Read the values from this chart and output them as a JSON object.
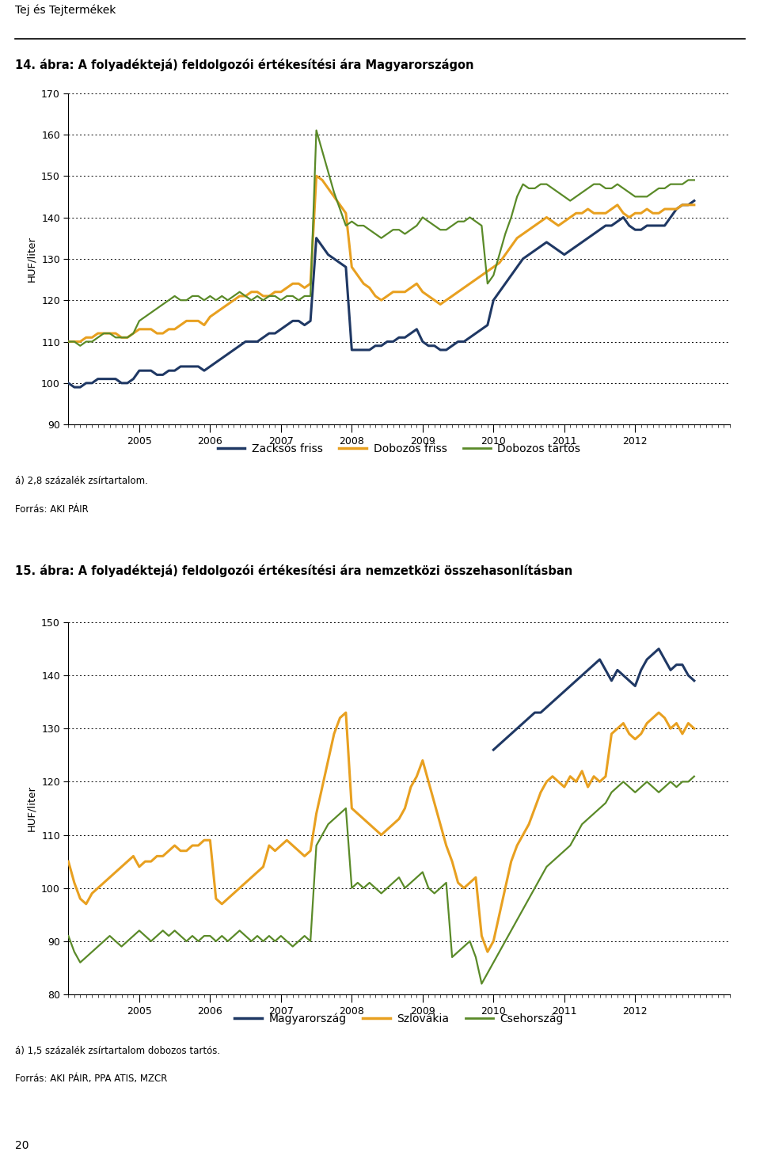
{
  "title1": "14. ábra: A folyadéktejá) feldolgozói értékesítési ára Magyarországon",
  "title2": "15. ábra: A folyadéktejá) feldolgozói értékesítési ára nemzetközi összehasonlításban",
  "header": "Tej és Tejtermékek",
  "ylabel": "HUF/liter",
  "footnote1a": "á) 2,8 százalék zsírtartalom.",
  "footnote1b": "Forrás: AKI PÁIR",
  "footnote2a": "á) 1,5 százalék zsírtartalom dobozos tartós.",
  "footnote2b": "Forrás: AKI PÁIR, PPA ATIS, MZCR",
  "page_number": "20",
  "color_blue": "#1F3864",
  "color_orange": "#E8A020",
  "color_green": "#5A8A28",
  "legend1": [
    "Zacksós friss",
    "Dobozos friss",
    "Dobozos tartós"
  ],
  "legend2": [
    "Magyarország",
    "Szlovákia",
    "Csehország"
  ],
  "chart1_ylim": [
    90,
    170
  ],
  "chart1_yticks": [
    90,
    100,
    110,
    120,
    130,
    140,
    150,
    160,
    170
  ],
  "chart2_ylim": [
    80,
    150
  ],
  "chart2_yticks": [
    80,
    90,
    100,
    110,
    120,
    130,
    140,
    150
  ],
  "year_ticks": [
    2005,
    2006,
    2007,
    2008,
    2009,
    2010,
    2011,
    2012
  ],
  "xlim": [
    2004.0,
    2012.92
  ],
  "n_months": 107,
  "start_year": 2004,
  "start_month": 1,
  "chart1_zacskos": [
    100,
    99,
    99,
    100,
    100,
    101,
    101,
    101,
    101,
    100,
    100,
    101,
    103,
    103,
    103,
    102,
    102,
    103,
    103,
    104,
    104,
    104,
    104,
    103,
    104,
    105,
    106,
    107,
    108,
    109,
    110,
    110,
    110,
    111,
    112,
    112,
    113,
    114,
    115,
    115,
    114,
    115,
    135,
    133,
    131,
    130,
    129,
    128,
    108,
    108,
    108,
    108,
    109,
    109,
    110,
    110,
    111,
    111,
    112,
    113,
    110,
    109,
    109,
    108,
    108,
    109,
    110,
    110,
    111,
    112,
    113,
    114,
    120,
    122,
    124,
    126,
    128,
    130,
    131,
    132,
    133,
    134,
    133,
    132,
    131,
    132,
    133,
    134,
    135,
    136,
    137,
    138,
    138,
    139,
    140,
    138,
    137,
    137,
    138,
    138,
    138,
    138,
    140,
    142,
    143,
    143,
    144,
    145,
    144
  ],
  "chart1_dobozos_friss": [
    110,
    110,
    110,
    111,
    111,
    112,
    112,
    112,
    112,
    111,
    111,
    112,
    113,
    113,
    113,
    112,
    112,
    113,
    113,
    114,
    115,
    115,
    115,
    114,
    116,
    117,
    118,
    119,
    120,
    121,
    121,
    122,
    122,
    121,
    121,
    122,
    122,
    123,
    124,
    124,
    123,
    124,
    150,
    149,
    147,
    145,
    143,
    141,
    128,
    126,
    124,
    123,
    121,
    120,
    121,
    122,
    122,
    122,
    123,
    124,
    122,
    121,
    120,
    119,
    120,
    121,
    122,
    123,
    124,
    125,
    126,
    127,
    128,
    129,
    131,
    133,
    135,
    136,
    137,
    138,
    139,
    140,
    139,
    138,
    139,
    140,
    141,
    141,
    142,
    141,
    141,
    141,
    142,
    143,
    141,
    140,
    141,
    141,
    142,
    141,
    141,
    142,
    142,
    142,
    143,
    143,
    143,
    143,
    143
  ],
  "chart1_dobozos_tartos": [
    110,
    110,
    109,
    110,
    110,
    111,
    112,
    112,
    111,
    111,
    111,
    112,
    115,
    116,
    117,
    118,
    119,
    120,
    121,
    120,
    120,
    121,
    121,
    120,
    121,
    120,
    121,
    120,
    121,
    122,
    121,
    120,
    121,
    120,
    121,
    121,
    120,
    121,
    121,
    120,
    121,
    121,
    161,
    156,
    151,
    146,
    142,
    138,
    139,
    138,
    138,
    137,
    136,
    135,
    136,
    137,
    137,
    136,
    137,
    138,
    140,
    139,
    138,
    137,
    137,
    138,
    139,
    139,
    140,
    139,
    138,
    124,
    126,
    131,
    136,
    140,
    145,
    148,
    147,
    147,
    148,
    148,
    147,
    146,
    145,
    144,
    145,
    146,
    147,
    148,
    148,
    147,
    147,
    148,
    147,
    146,
    145,
    145,
    145,
    146,
    147,
    147,
    148,
    148,
    148,
    149,
    149,
    150,
    149
  ],
  "chart2_magyarorszag": [
    null,
    null,
    null,
    null,
    null,
    null,
    null,
    null,
    null,
    null,
    null,
    null,
    null,
    null,
    null,
    null,
    null,
    null,
    null,
    null,
    null,
    null,
    null,
    null,
    null,
    null,
    null,
    null,
    null,
    null,
    null,
    null,
    null,
    null,
    null,
    null,
    null,
    null,
    null,
    null,
    null,
    null,
    null,
    null,
    null,
    null,
    null,
    null,
    null,
    null,
    null,
    null,
    null,
    null,
    null,
    null,
    null,
    null,
    null,
    null,
    null,
    null,
    null,
    null,
    null,
    null,
    null,
    null,
    null,
    null,
    null,
    null,
    126,
    127,
    128,
    129,
    130,
    131,
    132,
    133,
    133,
    134,
    135,
    136,
    137,
    138,
    139,
    140,
    141,
    142,
    143,
    141,
    139,
    141,
    140,
    139,
    138,
    141,
    143,
    144,
    145,
    143,
    141,
    142,
    142,
    140,
    139,
    138,
    139
  ],
  "chart2_slovakia": [
    105,
    101,
    98,
    97,
    99,
    100,
    101,
    102,
    103,
    104,
    105,
    106,
    104,
    105,
    105,
    106,
    106,
    107,
    108,
    107,
    107,
    108,
    108,
    109,
    109,
    98,
    97,
    98,
    99,
    100,
    101,
    102,
    103,
    104,
    108,
    107,
    108,
    109,
    108,
    107,
    106,
    107,
    114,
    119,
    124,
    129,
    132,
    133,
    115,
    114,
    113,
    112,
    111,
    110,
    111,
    112,
    113,
    115,
    119,
    121,
    124,
    120,
    116,
    112,
    108,
    105,
    101,
    100,
    101,
    102,
    91,
    88,
    90,
    95,
    100,
    105,
    108,
    110,
    112,
    115,
    118,
    120,
    121,
    120,
    119,
    121,
    120,
    122,
    119,
    121,
    120,
    121,
    129,
    130,
    131,
    129,
    128,
    129,
    131,
    132,
    133,
    132,
    130,
    131,
    129,
    131,
    130,
    128,
    130
  ],
  "chart2_czech": [
    91,
    88,
    86,
    87,
    88,
    89,
    90,
    91,
    90,
    89,
    90,
    91,
    92,
    91,
    90,
    91,
    92,
    91,
    92,
    91,
    90,
    91,
    90,
    91,
    91,
    90,
    91,
    90,
    91,
    92,
    91,
    90,
    91,
    90,
    91,
    90,
    91,
    90,
    89,
    90,
    91,
    90,
    108,
    110,
    112,
    113,
    114,
    115,
    100,
    101,
    100,
    101,
    100,
    99,
    100,
    101,
    102,
    100,
    101,
    102,
    103,
    100,
    99,
    100,
    101,
    87,
    88,
    89,
    90,
    87,
    82,
    84,
    86,
    88,
    90,
    92,
    94,
    96,
    98,
    100,
    102,
    104,
    105,
    106,
    107,
    108,
    110,
    112,
    113,
    114,
    115,
    116,
    118,
    119,
    120,
    119,
    118,
    119,
    120,
    119,
    118,
    119,
    120,
    119,
    120,
    120,
    121,
    120,
    119
  ]
}
